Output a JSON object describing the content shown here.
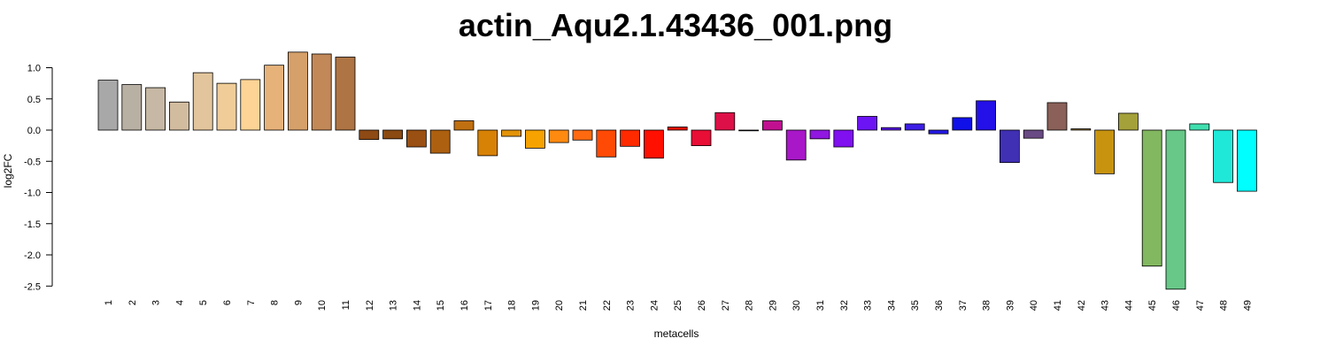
{
  "chart_data": {
    "type": "bar",
    "title": "actin_Aqu2.1.43436_001.png",
    "xlabel": "metacells",
    "ylabel": "log2FC",
    "ylim": [
      -2.5,
      1.0
    ],
    "yticks": [
      "1.0",
      "0.5",
      "0.0",
      "-0.5",
      "-1.0",
      "-1.5",
      "-2.0",
      "-2.5"
    ],
    "categories": [
      "1",
      "2",
      "3",
      "4",
      "5",
      "6",
      "7",
      "8",
      "9",
      "10",
      "11",
      "12",
      "13",
      "14",
      "15",
      "16",
      "17",
      "18",
      "19",
      "20",
      "21",
      "22",
      "23",
      "24",
      "25",
      "26",
      "27",
      "28",
      "29",
      "30",
      "31",
      "32",
      "33",
      "34",
      "35",
      "36",
      "37",
      "38",
      "39",
      "40",
      "41",
      "42",
      "43",
      "44",
      "45",
      "46",
      "47",
      "48",
      "49"
    ],
    "values": [
      0.8,
      0.73,
      0.68,
      0.45,
      0.92,
      0.75,
      0.81,
      1.04,
      1.25,
      1.22,
      1.17,
      -0.15,
      -0.14,
      -0.27,
      -0.37,
      0.15,
      -0.41,
      -0.1,
      -0.29,
      -0.2,
      -0.16,
      -0.43,
      -0.26,
      -0.45,
      0.05,
      -0.25,
      0.28,
      -0.01,
      0.15,
      -0.48,
      -0.14,
      -0.27,
      0.22,
      0.04,
      0.1,
      -0.06,
      0.2,
      0.47,
      -0.52,
      -0.13,
      0.44,
      0.02,
      -0.7,
      0.27,
      -2.18,
      -2.55,
      0.1,
      -0.84,
      -0.98
    ],
    "colors": [
      "#a8a8a8",
      "#b9b0a4",
      "#c6b8a4",
      "#d2bc9f",
      "#e2c59c",
      "#efcc98",
      "#fdd495",
      "#e6b27a",
      "#d6a06a",
      "#c28858",
      "#ae7444",
      "#8e4a14",
      "#8a4a12",
      "#9a5012",
      "#ad6010",
      "#c07010",
      "#d88205",
      "#e4940a",
      "#f6a200",
      "#ff8a10",
      "#ff6a10",
      "#ff4a05",
      "#ff2a00",
      "#ff1000",
      "#e41000",
      "#e80e35",
      "#de1048",
      "#d0104e",
      "#c01090",
      "#a818c8",
      "#9018e0",
      "#8010f0",
      "#6c14f4",
      "#5818e8",
      "#3c1ee6",
      "#2418e4",
      "#1010e8",
      "#2410e8",
      "#4030b4",
      "#6a4a84",
      "#8a6058",
      "#8a6a30",
      "#c89410",
      "#a4a03a",
      "#82b860",
      "#68c888",
      "#40e0b0",
      "#20e8d8",
      "#00ffff"
    ]
  }
}
